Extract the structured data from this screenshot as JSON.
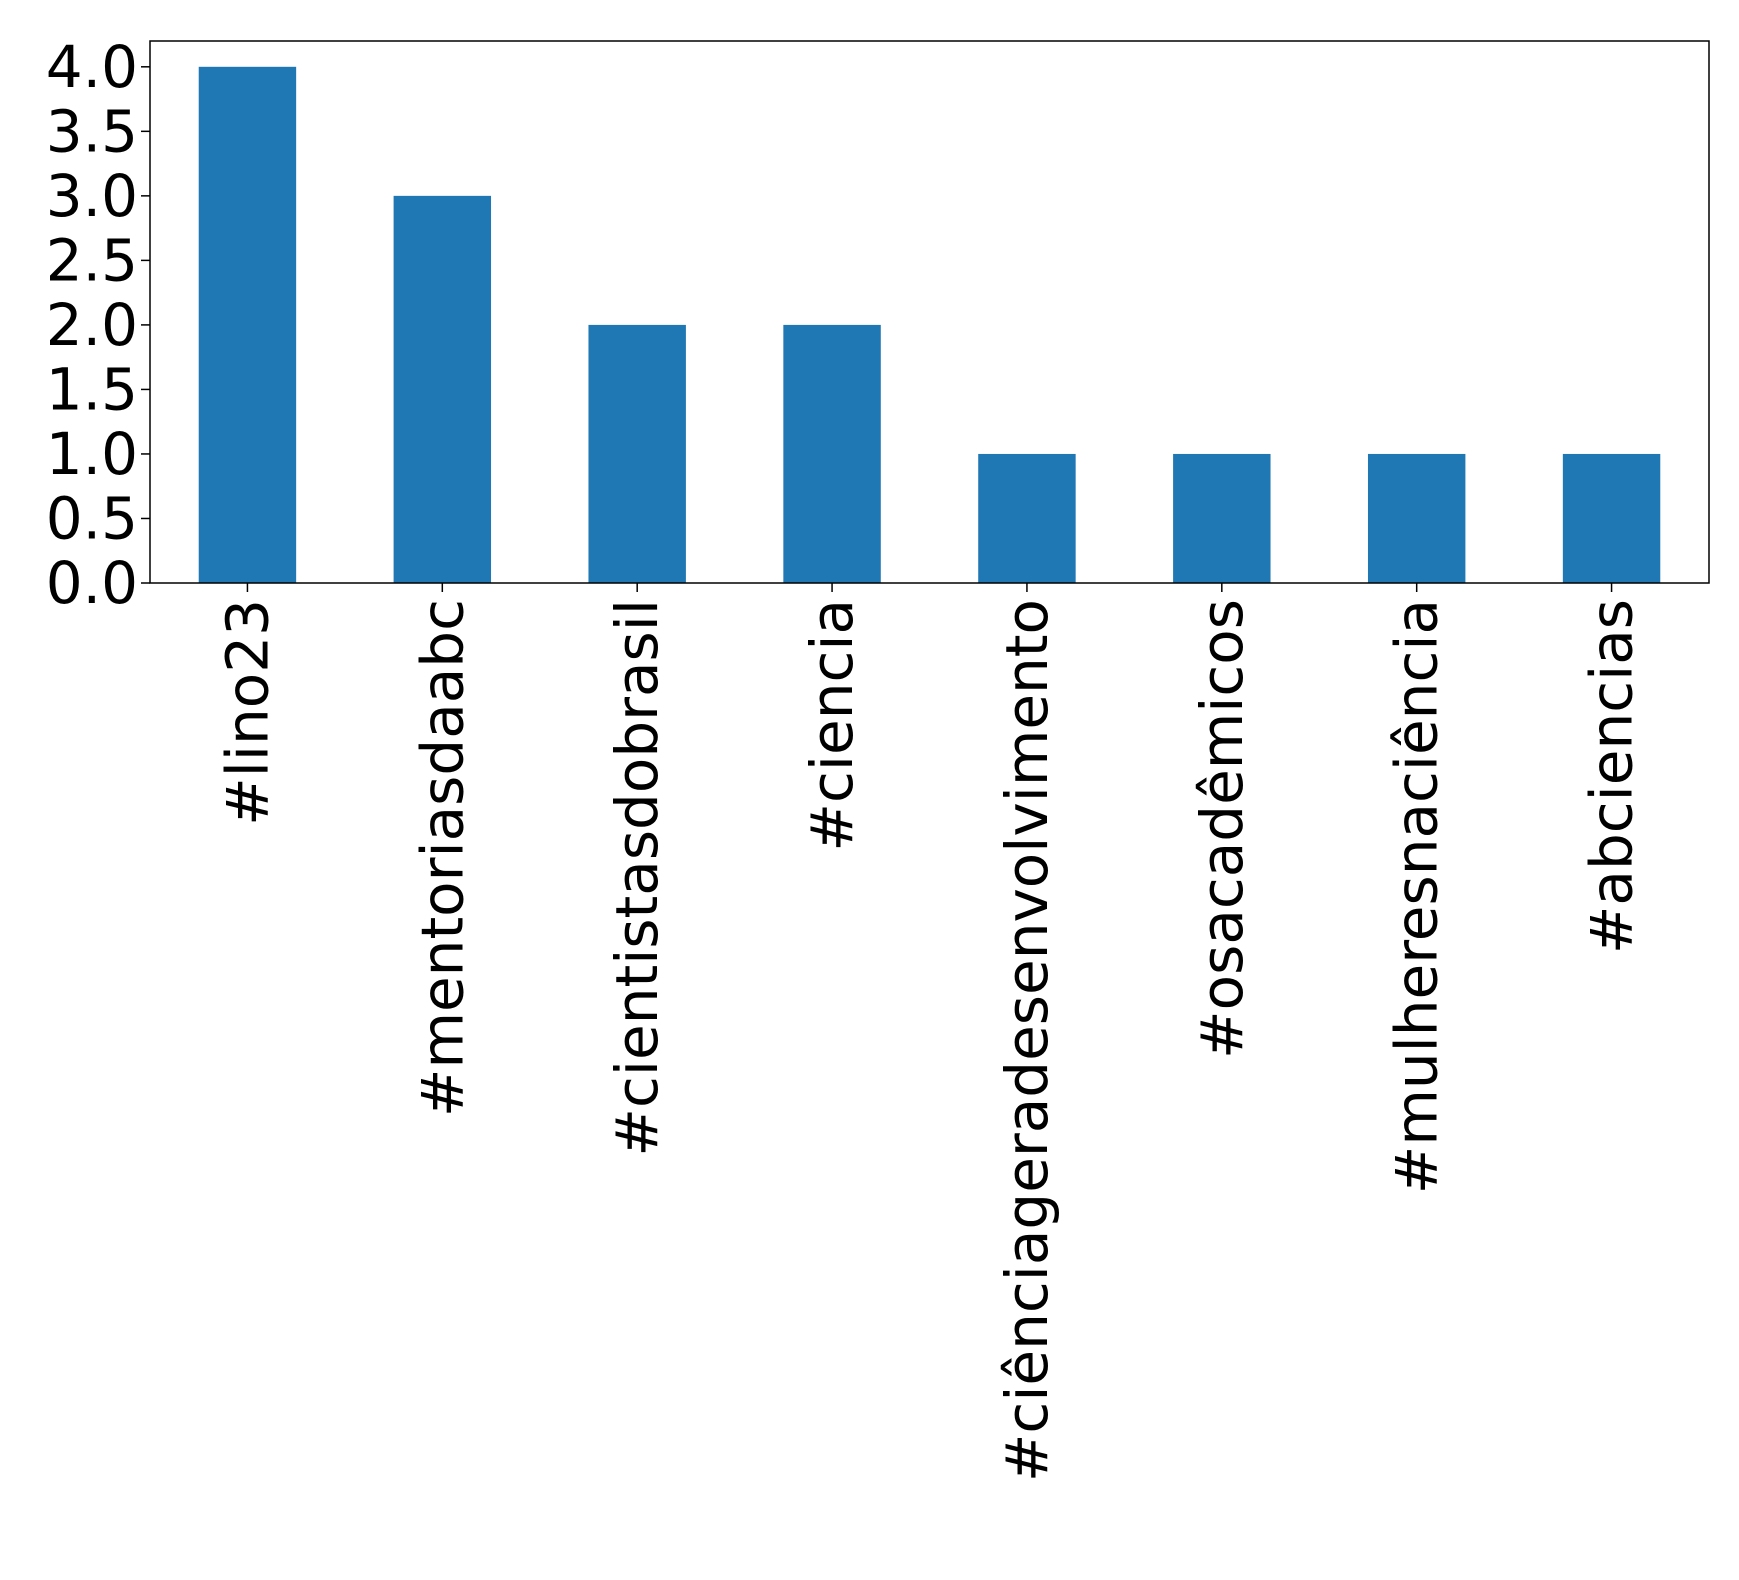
{
  "chart_data": {
    "type": "bar",
    "title": "",
    "xlabel": "",
    "ylabel": "",
    "categories": [
      "#lino23",
      "#mentoriasdaabc",
      "#cientistasdobrasil",
      "#ciencia",
      "#ciênciageradesenvolvimento",
      "#osacadêmicos",
      "#mulheresnaciência",
      "#abciencias"
    ],
    "values": [
      4,
      3,
      2,
      2,
      1,
      1,
      1,
      1
    ],
    "ylim": [
      0,
      4.2
    ],
    "yticks": [
      "0.0",
      "0.5",
      "1.0",
      "1.5",
      "2.0",
      "2.5",
      "3.0",
      "3.5",
      "4.0"
    ],
    "grid": false,
    "legend": "none",
    "bar_color": "#1f77b4"
  }
}
